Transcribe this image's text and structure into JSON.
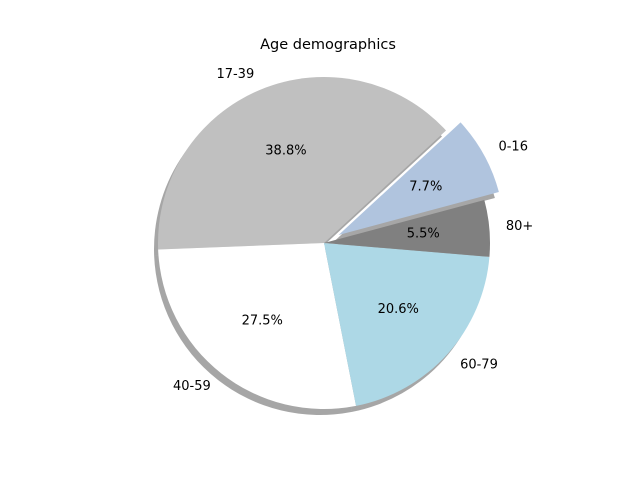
{
  "chart_data": {
    "type": "pie",
    "title": "Age demographics",
    "labels": [
      "0-16",
      "17-39",
      "40-59",
      "60-79",
      "80+"
    ],
    "values": [
      7.7,
      38.8,
      27.5,
      20.6,
      5.5
    ],
    "percent_labels": [
      "7.7%",
      "38.8%",
      "27.5%",
      "20.6%",
      "5.5%"
    ],
    "colors": [
      "#b0c4de",
      "#c0c0c0",
      "#ffffff",
      "#add8e6",
      "#808080"
    ],
    "explode": [
      0.1,
      0,
      0,
      0,
      0
    ],
    "start_angle_deg": 15,
    "shadow": true,
    "legend": "none"
  }
}
